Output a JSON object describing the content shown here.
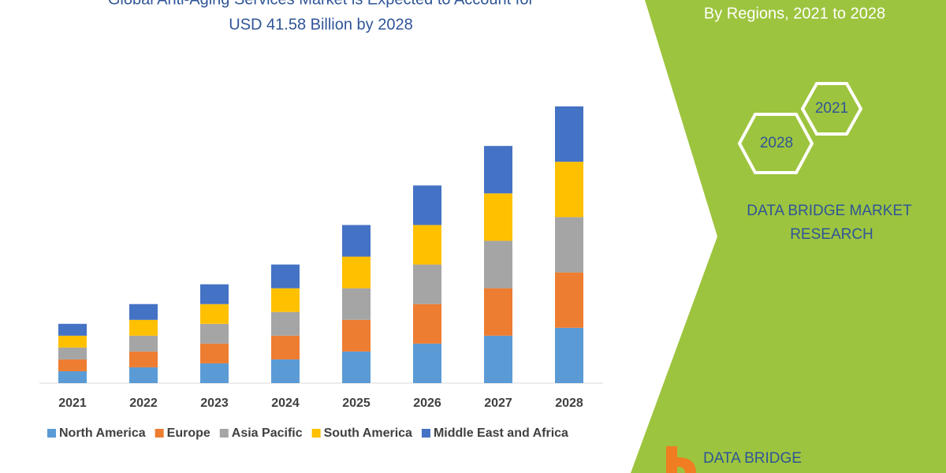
{
  "chart_data": {
    "type": "stacked_bar",
    "title": [
      "Global Anti-Aging Services Market is Expected to Account for",
      "USD 41.58 Billion by 2028"
    ],
    "categories": [
      "2021",
      "2022",
      "2023",
      "2024",
      "2025",
      "2026",
      "2027",
      "2028"
    ],
    "series": [
      {
        "name": "North America",
        "color": "#5b9bd5",
        "values": [
          15,
          20,
          25,
          30,
          40,
          50,
          60,
          70
        ]
      },
      {
        "name": "Europe",
        "color": "#ed7d31",
        "values": [
          15,
          20,
          25,
          30,
          40,
          50,
          60,
          70
        ]
      },
      {
        "name": "Asia Pacific",
        "color": "#a5a5a5",
        "values": [
          15,
          20,
          25,
          30,
          40,
          50,
          60,
          70
        ]
      },
      {
        "name": "South America",
        "color": "#ffc000",
        "values": [
          15,
          20,
          25,
          30,
          40,
          50,
          60,
          70
        ]
      },
      {
        "name": "Middle East and Africa",
        "color": "#4472c4",
        "values": [
          15,
          20,
          25,
          30,
          40,
          50,
          60,
          70
        ]
      }
    ]
  },
  "sidebar": {
    "subtitle": "By Regions, 2021 to 2028",
    "hex_labels": [
      "2021",
      "2028"
    ],
    "brand": [
      "DATA BRIDGE MARKET",
      "RESEARCH"
    ],
    "logo": "DATA BRIDGE"
  }
}
